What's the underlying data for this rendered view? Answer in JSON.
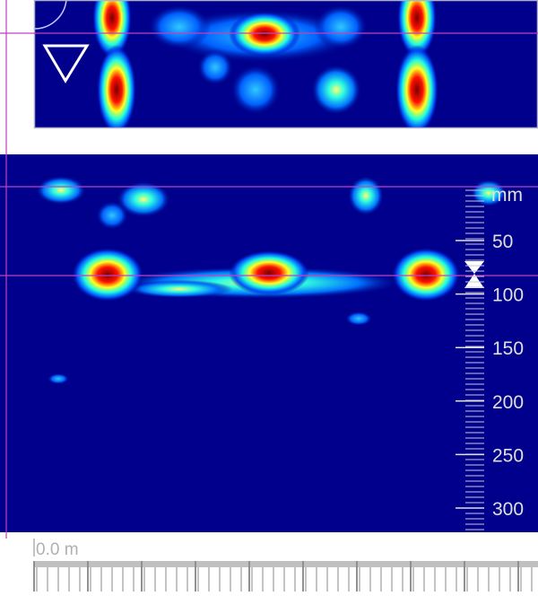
{
  "depth_scale": {
    "unit": "mm",
    "labels": [
      "50",
      "100",
      "150",
      "200",
      "250",
      "300"
    ]
  },
  "distance_ruler": {
    "start_label": "0.0 m"
  }
}
